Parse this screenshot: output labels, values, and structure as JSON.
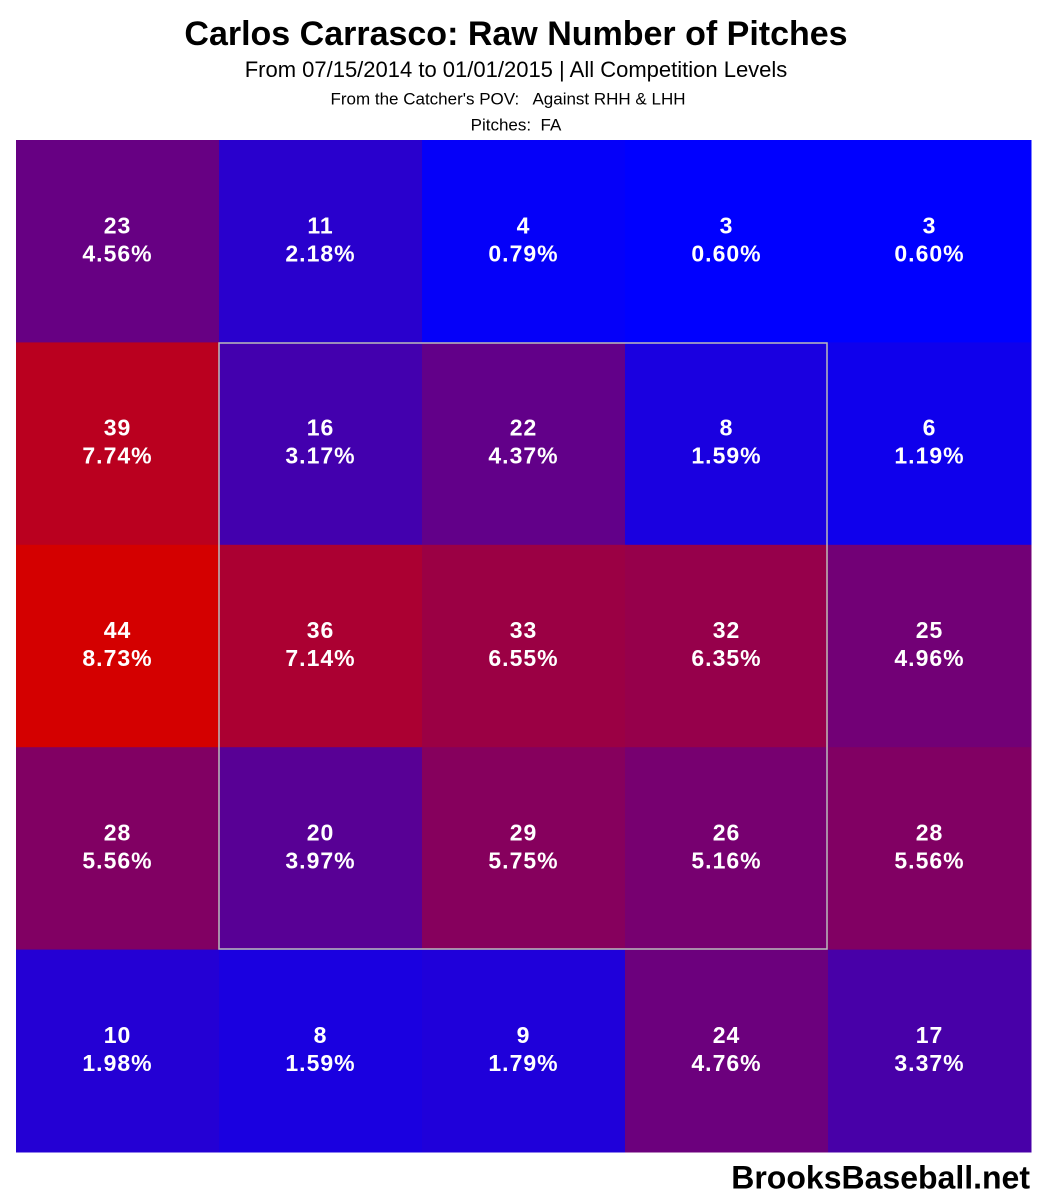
{
  "chart_data": {
    "type": "heatmap",
    "title": "Carlos Carrasco: Raw Number of Pitches",
    "subtitle": "From 07/15/2014 to 01/01/2015 | All Competition Levels",
    "notes": [
      "From the Catcher's POV:   Against RHH & LHH",
      "Pitches:  FA"
    ],
    "source": "BrooksBaseball.net",
    "color_low": "#0000ff",
    "color_high": "#d40000",
    "values": [
      [
        23,
        11,
        4,
        3,
        3
      ],
      [
        39,
        16,
        22,
        8,
        6
      ],
      [
        44,
        36,
        33,
        32,
        25
      ],
      [
        28,
        20,
        29,
        26,
        28
      ],
      [
        10,
        8,
        9,
        24,
        17
      ]
    ],
    "percentages": [
      [
        4.56,
        2.18,
        0.79,
        0.6,
        0.6
      ],
      [
        7.74,
        3.17,
        4.37,
        1.59,
        1.19
      ],
      [
        8.73,
        7.14,
        6.55,
        6.35,
        4.96
      ],
      [
        5.56,
        3.97,
        5.75,
        5.16,
        5.56
      ],
      [
        1.98,
        1.59,
        1.79,
        4.76,
        3.37
      ]
    ],
    "percentage_labels": [
      [
        "4.56%",
        "2.18%",
        "0.79%",
        "0.60%",
        "0.60%"
      ],
      [
        "7.74%",
        "3.17%",
        "4.37%",
        "1.59%",
        "1.19%"
      ],
      [
        "8.73%",
        "7.14%",
        "6.55%",
        "6.35%",
        "4.96%"
      ],
      [
        "5.56%",
        "3.97%",
        "5.75%",
        "5.16%",
        "5.56%"
      ],
      [
        "1.98%",
        "1.59%",
        "1.79%",
        "4.76%",
        "3.37%"
      ]
    ]
  }
}
